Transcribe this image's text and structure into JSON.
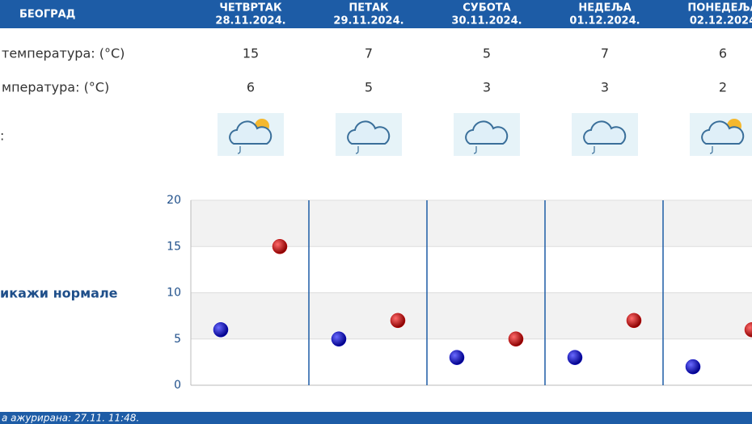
{
  "header": {
    "city": "БЕОГРАД"
  },
  "days": [
    {
      "name": "ЧЕТВРТАК",
      "date": "28.11.2024."
    },
    {
      "name": "ПЕТАК",
      "date": "29.11.2024."
    },
    {
      "name": "СУБОТА",
      "date": "30.11.2024."
    },
    {
      "name": "НЕДЕЉА",
      "date": "01.12.2024."
    },
    {
      "name": "ПОНЕДЕЉА",
      "date": "02.12.2024"
    }
  ],
  "table": {
    "row_labels": [
      "температура: (°C)",
      "мпература: (°C)",
      ":"
    ]
  },
  "normals_link": "икажи нормале",
  "footer": {
    "updated": "а ажурирана:  27.11. 11:48."
  },
  "chart_data": {
    "type": "scatter",
    "ylim": [
      0,
      20
    ],
    "yticks": [
      0,
      5,
      10,
      15,
      20
    ],
    "grid": true,
    "series": [
      {
        "color": "#0000c8",
        "values": [
          6,
          5,
          3,
          3,
          2
        ]
      },
      {
        "color": "#c80000",
        "values": [
          15,
          7,
          5,
          7,
          6
        ]
      }
    ]
  }
}
